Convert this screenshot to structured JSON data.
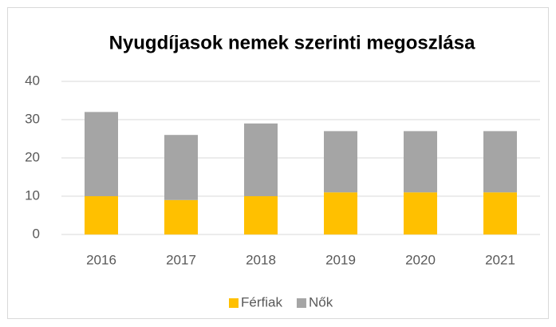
{
  "chart_data": {
    "type": "stacked_bar",
    "title": "Nyugdíjasok nemek szerinti megoszlása",
    "categories": [
      "2016",
      "2017",
      "2018",
      "2019",
      "2020",
      "2021"
    ],
    "series": [
      {
        "name": "Férfiak",
        "color": "#ffc000",
        "values": [
          10,
          9,
          10,
          11,
          11,
          11
        ]
      },
      {
        "name": "Nők",
        "color": "#a5a5a5",
        "values": [
          22,
          17,
          19,
          16,
          16,
          16
        ]
      }
    ],
    "ylim": [
      0,
      40
    ],
    "yticks": [
      0,
      10,
      20,
      30,
      40
    ],
    "grid": true,
    "legend": "bottom"
  }
}
